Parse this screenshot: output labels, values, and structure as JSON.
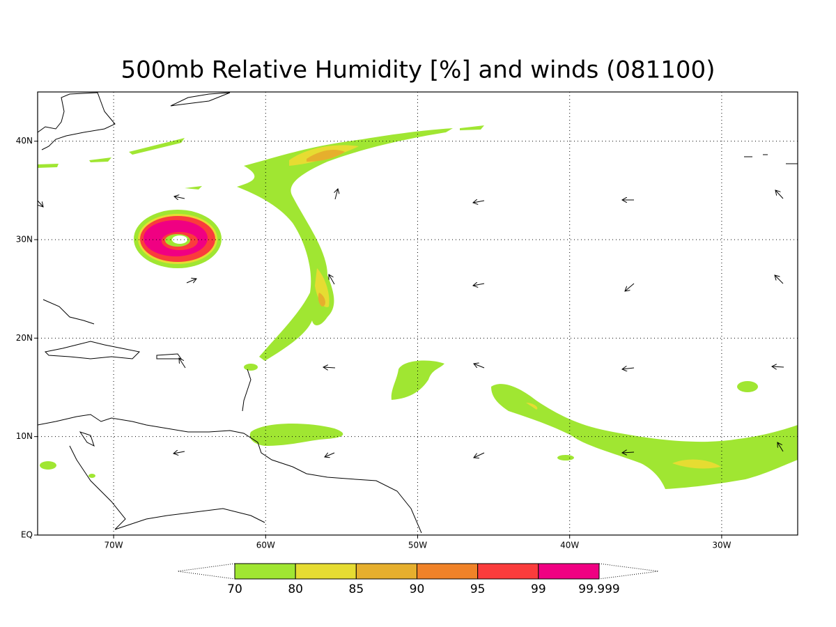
{
  "title": "500mb Relative Humidity [%] and winds (081100)",
  "map": {
    "lonlim": [
      -75,
      -25
    ],
    "latlim": [
      0,
      45
    ],
    "lon_ticks": [
      {
        "value": -70,
        "label": "70W"
      },
      {
        "value": -60,
        "label": "60W"
      },
      {
        "value": -50,
        "label": "50W"
      },
      {
        "value": -40,
        "label": "40W"
      },
      {
        "value": -30,
        "label": "30W"
      }
    ],
    "lat_ticks": [
      {
        "value": 0,
        "label": "EQ"
      },
      {
        "value": 10,
        "label": "10N"
      },
      {
        "value": 20,
        "label": "20N"
      },
      {
        "value": 30,
        "label": "30N"
      },
      {
        "value": 40,
        "label": "40N"
      }
    ],
    "grid": true
  },
  "colorbar": {
    "levels": [
      70,
      80,
      85,
      90,
      95,
      99,
      99.999
    ],
    "colors": [
      "#a0e632",
      "#e6dc32",
      "#e6af2d",
      "#f08228",
      "#fa3c3c",
      "#f00082"
    ]
  }
}
